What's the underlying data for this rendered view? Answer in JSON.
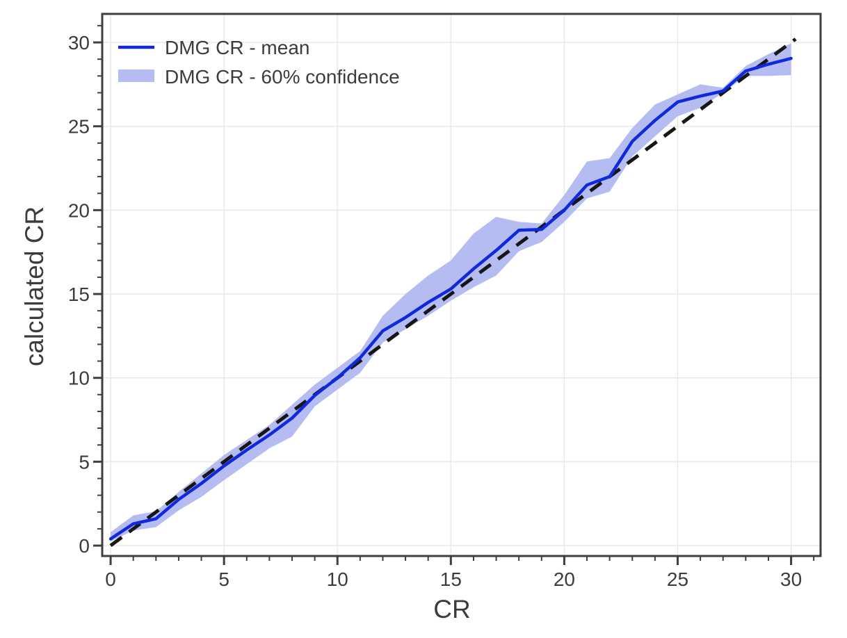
{
  "figure": {
    "background": "#ffffff",
    "plot_border_color": "#3f3f3f",
    "grid_color": "#e9e9e9",
    "tick_color": "#3f3f3f",
    "text_color": "#3c3c3c"
  },
  "legend": {
    "mean_label": "DMG CR - mean",
    "band_label": "DMG CR - 60% confidence"
  },
  "chart_data": {
    "type": "line",
    "title": "",
    "xlabel": "CR",
    "ylabel": "calculated CR",
    "xlim": [
      -0.37,
      31.3
    ],
    "ylim": [
      -0.62,
      31.7
    ],
    "x_ticks": [
      0,
      5,
      10,
      15,
      20,
      25,
      30
    ],
    "y_ticks": [
      0,
      5,
      10,
      15,
      20,
      25,
      30
    ],
    "minor_tick_step": 1,
    "grid": true,
    "legend_position": "top-left",
    "x": [
      0,
      1,
      2,
      3,
      4,
      5,
      6,
      7,
      8,
      9,
      10,
      11,
      12,
      13,
      14,
      15,
      16,
      17,
      18,
      19,
      20,
      21,
      22,
      23,
      24,
      25,
      26,
      27,
      28,
      29,
      30
    ],
    "series": [
      {
        "name": "DMG CR - mean",
        "type": "line",
        "color": "#1129dd",
        "line_width": 4.5,
        "in_legend": true,
        "values": [
          0.4,
          1.3,
          1.6,
          2.75,
          3.7,
          4.75,
          5.7,
          6.6,
          7.6,
          8.95,
          10.0,
          11.2,
          12.8,
          13.6,
          14.5,
          15.3,
          16.5,
          17.6,
          18.8,
          18.85,
          20.0,
          21.5,
          22.0,
          24.1,
          25.35,
          26.45,
          26.8,
          27.1,
          28.3,
          28.7,
          29.05
        ]
      },
      {
        "name": "DMG CR - 60% confidence",
        "type": "band",
        "color": "#b5bcf2",
        "in_legend": true,
        "lower": [
          0.25,
          0.9,
          1.1,
          2.1,
          2.9,
          3.9,
          4.85,
          5.8,
          6.5,
          8.3,
          9.3,
          10.3,
          12.1,
          12.9,
          13.7,
          14.6,
          15.4,
          16.1,
          17.55,
          18.1,
          19.3,
          20.7,
          21.1,
          23.2,
          24.4,
          25.6,
          26.1,
          27.0,
          28.0,
          28.0,
          28.05
        ],
        "upper": [
          0.8,
          1.8,
          2.05,
          3.2,
          4.3,
          5.4,
          6.3,
          7.2,
          8.4,
          9.6,
          10.6,
          11.6,
          13.7,
          15.0,
          16.1,
          17.0,
          18.6,
          19.6,
          19.3,
          19.2,
          20.9,
          22.9,
          23.1,
          24.9,
          26.3,
          26.9,
          27.5,
          27.3,
          28.6,
          29.3,
          29.95
        ]
      },
      {
        "name": "y = x reference",
        "type": "dashed-line",
        "color": "#161616",
        "line_width": 5,
        "dash": [
          20,
          13
        ],
        "in_legend": false,
        "x": [
          0,
          30.2
        ],
        "values": [
          0,
          30.2
        ]
      }
    ]
  }
}
